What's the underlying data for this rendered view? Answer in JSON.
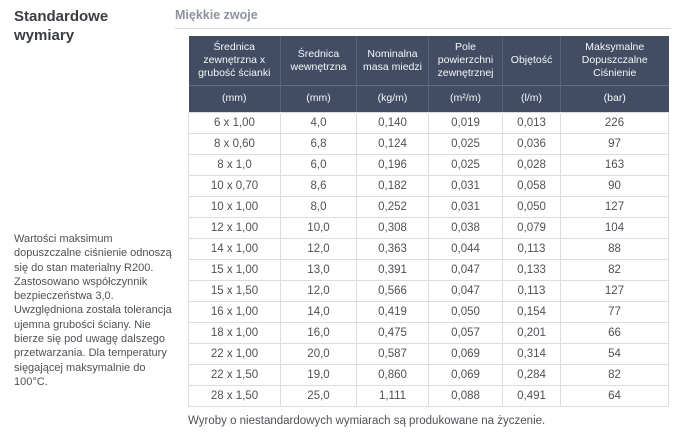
{
  "sidebar": {
    "title": "Standardowe wymiary",
    "note": "Wartości maksimum dopuszczalne ciśnienie odnoszą się do stan materialny R200. Zastosowano współczynnik bezpieczeństwa 3,0. Uwzględniona została tolerancja ujemna grubości ściany. Nie bierze się pod uwagę dalszego przetwarzania. Dla temperatury sięgającej maksymalnie do 100°C."
  },
  "table": {
    "title": "Miękkie zwoje",
    "columns": [
      {
        "label": "Średnica zewnętrzna x grubość ścianki",
        "unit": "(mm)"
      },
      {
        "label": "Średnica wewnętrzna",
        "unit": "(mm)"
      },
      {
        "label": "Nominalna masa miedzi",
        "unit": "(kg/m)"
      },
      {
        "label": "Pole powierzchni zewnętrznej",
        "unit": "(m²/m)"
      },
      {
        "label": "Objętość",
        "unit": "(l/m)"
      },
      {
        "label": "Maksymalne Dopuszczalne Ciśnienie",
        "unit": "(bar)"
      }
    ],
    "rows": [
      [
        "6 x 1,00",
        "4,0",
        "0,140",
        "0,019",
        "0,013",
        "226"
      ],
      [
        "8 x 0,60",
        "6,8",
        "0,124",
        "0,025",
        "0,036",
        "97"
      ],
      [
        "8 x 1,0",
        "6,0",
        "0,196",
        "0,025",
        "0,028",
        "163"
      ],
      [
        "10 x 0,70",
        "8,6",
        "0,182",
        "0,031",
        "0,058",
        "90"
      ],
      [
        "10 x 1,00",
        "8,0",
        "0,252",
        "0,031",
        "0,050",
        "127"
      ],
      [
        "12 x 1,00",
        "10,0",
        "0,308",
        "0,038",
        "0,079",
        "104"
      ],
      [
        "14 x 1,00",
        "12,0",
        "0,363",
        "0,044",
        "0,113",
        "88"
      ],
      [
        "15 x 1,00",
        "13,0",
        "0,391",
        "0,047",
        "0,133",
        "82"
      ],
      [
        "15 x 1,50",
        "12,0",
        "0,566",
        "0,047",
        "0,113",
        "127"
      ],
      [
        "16 x 1,00",
        "14,0",
        "0,419",
        "0,050",
        "0,154",
        "77"
      ],
      [
        "18 x 1,00",
        "16,0",
        "0,475",
        "0,057",
        "0,201",
        "66"
      ],
      [
        "22 x 1,00",
        "20,0",
        "0,587",
        "0,069",
        "0,314",
        "54"
      ],
      [
        "22 x 1,50",
        "19,0",
        "0,860",
        "0,069",
        "0,284",
        "82"
      ],
      [
        "28 x 1,50",
        "25,0",
        "1,111",
        "0,088",
        "0,491",
        "64"
      ]
    ],
    "footnote": "Wyroby o niestandardowych wymiarach są produkowane na życzenie."
  },
  "colors": {
    "header_bg": "#424d63",
    "header_text": "#f5f7fa",
    "body_text": "#4e5256",
    "border": "#dcdcdc",
    "muted_title": "#8d939d"
  }
}
